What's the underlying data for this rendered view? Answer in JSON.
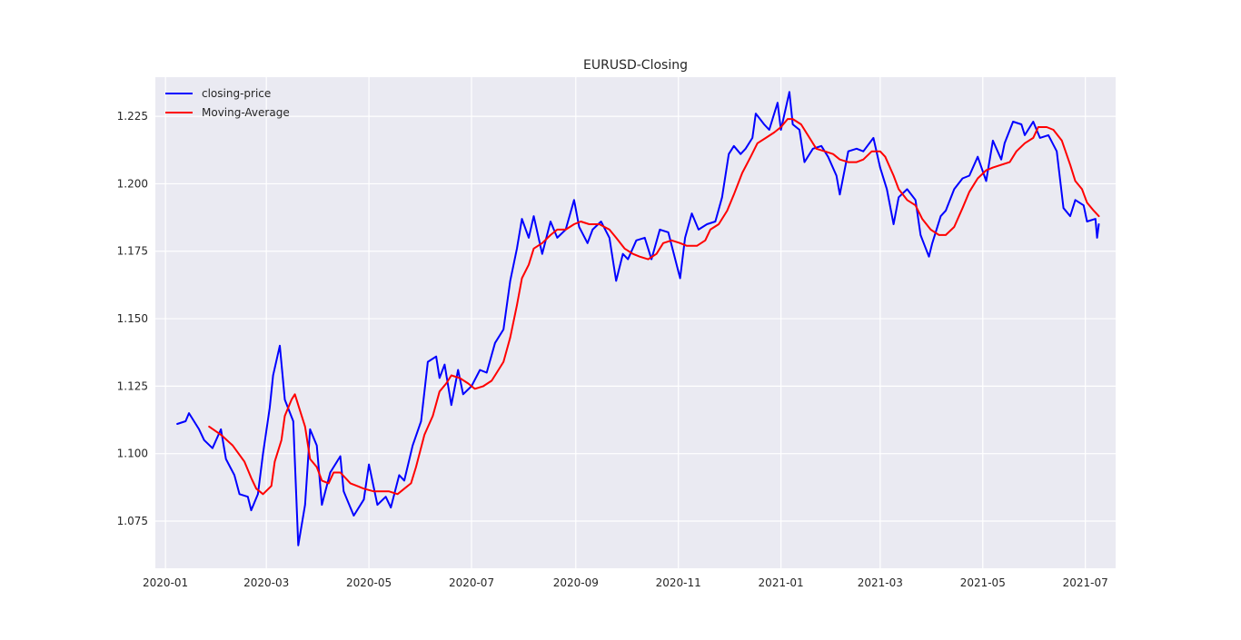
{
  "chart_data": {
    "type": "line",
    "title": "EURUSD-Closing",
    "xlabel": "",
    "ylabel": "",
    "x_axis": "date",
    "xlim": [
      "2019-12-26",
      "2021-07-19"
    ],
    "ylim": [
      1.0575,
      1.2395
    ],
    "x_ticks": [
      "2020-01",
      "2020-03",
      "2020-05",
      "2020-07",
      "2020-09",
      "2020-11",
      "2021-01",
      "2021-03",
      "2021-05",
      "2021-07"
    ],
    "y_ticks": [
      "1.075",
      "1.100",
      "1.125",
      "1.150",
      "1.175",
      "1.200",
      "1.225"
    ],
    "grid": true,
    "legend_position": "top-left",
    "series": [
      {
        "name": "closing-price",
        "color": "#0000ff",
        "points": [
          [
            "2020-01-08",
            1.111
          ],
          [
            "2020-01-13",
            1.112
          ],
          [
            "2020-01-15",
            1.115
          ],
          [
            "2020-01-21",
            1.109
          ],
          [
            "2020-01-24",
            1.105
          ],
          [
            "2020-01-29",
            1.102
          ],
          [
            "2020-02-03",
            1.109
          ],
          [
            "2020-02-06",
            1.098
          ],
          [
            "2020-02-11",
            1.092
          ],
          [
            "2020-02-14",
            1.085
          ],
          [
            "2020-02-19",
            1.084
          ],
          [
            "2020-02-21",
            1.079
          ],
          [
            "2020-02-25",
            1.085
          ],
          [
            "2020-02-28",
            1.1
          ],
          [
            "2020-03-03",
            1.117
          ],
          [
            "2020-03-05",
            1.129
          ],
          [
            "2020-03-09",
            1.14
          ],
          [
            "2020-03-12",
            1.12
          ],
          [
            "2020-03-17",
            1.112
          ],
          [
            "2020-03-20",
            1.066
          ],
          [
            "2020-03-24",
            1.081
          ],
          [
            "2020-03-27",
            1.109
          ],
          [
            "2020-03-31",
            1.103
          ],
          [
            "2020-04-03",
            1.081
          ],
          [
            "2020-04-08",
            1.093
          ],
          [
            "2020-04-14",
            1.099
          ],
          [
            "2020-04-16",
            1.086
          ],
          [
            "2020-04-22",
            1.077
          ],
          [
            "2020-04-28",
            1.083
          ],
          [
            "2020-05-01",
            1.096
          ],
          [
            "2020-05-06",
            1.081
          ],
          [
            "2020-05-11",
            1.084
          ],
          [
            "2020-05-14",
            1.08
          ],
          [
            "2020-05-19",
            1.092
          ],
          [
            "2020-05-22",
            1.09
          ],
          [
            "2020-05-27",
            1.103
          ],
          [
            "2020-06-01",
            1.112
          ],
          [
            "2020-06-05",
            1.134
          ],
          [
            "2020-06-10",
            1.136
          ],
          [
            "2020-06-12",
            1.128
          ],
          [
            "2020-06-15",
            1.133
          ],
          [
            "2020-06-19",
            1.118
          ],
          [
            "2020-06-23",
            1.131
          ],
          [
            "2020-06-26",
            1.122
          ],
          [
            "2020-07-01",
            1.125
          ],
          [
            "2020-07-06",
            1.131
          ],
          [
            "2020-07-10",
            1.13
          ],
          [
            "2020-07-15",
            1.141
          ],
          [
            "2020-07-20",
            1.146
          ],
          [
            "2020-07-24",
            1.164
          ],
          [
            "2020-07-28",
            1.176
          ],
          [
            "2020-07-31",
            1.187
          ],
          [
            "2020-08-04",
            1.18
          ],
          [
            "2020-08-07",
            1.188
          ],
          [
            "2020-08-12",
            1.174
          ],
          [
            "2020-08-17",
            1.186
          ],
          [
            "2020-08-21",
            1.18
          ],
          [
            "2020-08-26",
            1.183
          ],
          [
            "2020-08-31",
            1.194
          ],
          [
            "2020-09-03",
            1.184
          ],
          [
            "2020-09-08",
            1.178
          ],
          [
            "2020-09-11",
            1.183
          ],
          [
            "2020-09-16",
            1.186
          ],
          [
            "2020-09-21",
            1.18
          ],
          [
            "2020-09-25",
            1.164
          ],
          [
            "2020-09-29",
            1.174
          ],
          [
            "2020-10-02",
            1.172
          ],
          [
            "2020-10-07",
            1.179
          ],
          [
            "2020-10-12",
            1.18
          ],
          [
            "2020-10-16",
            1.172
          ],
          [
            "2020-10-21",
            1.183
          ],
          [
            "2020-10-26",
            1.182
          ],
          [
            "2020-11-02",
            1.165
          ],
          [
            "2020-11-05",
            1.18
          ],
          [
            "2020-11-09",
            1.189
          ],
          [
            "2020-11-13",
            1.183
          ],
          [
            "2020-11-18",
            1.185
          ],
          [
            "2020-11-23",
            1.186
          ],
          [
            "2020-11-27",
            1.195
          ],
          [
            "2020-12-01",
            1.211
          ],
          [
            "2020-12-04",
            1.214
          ],
          [
            "2020-12-08",
            1.211
          ],
          [
            "2020-12-11",
            1.213
          ],
          [
            "2020-12-15",
            1.217
          ],
          [
            "2020-12-17",
            1.226
          ],
          [
            "2020-12-22",
            1.222
          ],
          [
            "2020-12-25",
            1.22
          ],
          [
            "2020-12-30",
            1.23
          ],
          [
            "2021-01-01",
            1.22
          ],
          [
            "2021-01-06",
            1.234
          ],
          [
            "2021-01-08",
            1.222
          ],
          [
            "2021-01-12",
            1.22
          ],
          [
            "2021-01-15",
            1.208
          ],
          [
            "2021-01-20",
            1.213
          ],
          [
            "2021-01-25",
            1.214
          ],
          [
            "2021-01-29",
            1.21
          ],
          [
            "2021-02-03",
            1.203
          ],
          [
            "2021-02-05",
            1.196
          ],
          [
            "2021-02-10",
            1.212
          ],
          [
            "2021-02-15",
            1.213
          ],
          [
            "2021-02-19",
            1.212
          ],
          [
            "2021-02-25",
            1.217
          ],
          [
            "2021-03-01",
            1.206
          ],
          [
            "2021-03-05",
            1.198
          ],
          [
            "2021-03-09",
            1.185
          ],
          [
            "2021-03-12",
            1.195
          ],
          [
            "2021-03-17",
            1.198
          ],
          [
            "2021-03-22",
            1.194
          ],
          [
            "2021-03-25",
            1.181
          ],
          [
            "2021-03-30",
            1.173
          ],
          [
            "2021-04-01",
            1.178
          ],
          [
            "2021-04-06",
            1.188
          ],
          [
            "2021-04-09",
            1.19
          ],
          [
            "2021-04-14",
            1.198
          ],
          [
            "2021-04-19",
            1.202
          ],
          [
            "2021-04-23",
            1.203
          ],
          [
            "2021-04-28",
            1.21
          ],
          [
            "2021-05-03",
            1.201
          ],
          [
            "2021-05-07",
            1.216
          ],
          [
            "2021-05-12",
            1.209
          ],
          [
            "2021-05-14",
            1.215
          ],
          [
            "2021-05-19",
            1.223
          ],
          [
            "2021-05-24",
            1.222
          ],
          [
            "2021-05-26",
            1.218
          ],
          [
            "2021-05-31",
            1.223
          ],
          [
            "2021-06-04",
            1.217
          ],
          [
            "2021-06-09",
            1.218
          ],
          [
            "2021-06-14",
            1.212
          ],
          [
            "2021-06-18",
            1.191
          ],
          [
            "2021-06-22",
            1.188
          ],
          [
            "2021-06-25",
            1.194
          ],
          [
            "2021-06-30",
            1.192
          ],
          [
            "2021-07-02",
            1.186
          ],
          [
            "2021-07-07",
            1.187
          ],
          [
            "2021-07-08",
            1.18
          ],
          [
            "2021-07-09",
            1.185
          ]
        ]
      },
      {
        "name": "Moving-Average",
        "color": "#ff0000",
        "points": [
          [
            "2020-01-27",
            1.11
          ],
          [
            "2020-02-03",
            1.107
          ],
          [
            "2020-02-10",
            1.103
          ],
          [
            "2020-02-17",
            1.097
          ],
          [
            "2020-02-21",
            1.091
          ],
          [
            "2020-02-24",
            1.087
          ],
          [
            "2020-02-28",
            1.085
          ],
          [
            "2020-03-04",
            1.088
          ],
          [
            "2020-03-06",
            1.097
          ],
          [
            "2020-03-10",
            1.105
          ],
          [
            "2020-03-12",
            1.114
          ],
          [
            "2020-03-16",
            1.12
          ],
          [
            "2020-03-18",
            1.122
          ],
          [
            "2020-03-20",
            1.118
          ],
          [
            "2020-03-24",
            1.11
          ],
          [
            "2020-03-27",
            1.098
          ],
          [
            "2020-03-31",
            1.095
          ],
          [
            "2020-04-03",
            1.09
          ],
          [
            "2020-04-07",
            1.089
          ],
          [
            "2020-04-10",
            1.093
          ],
          [
            "2020-04-14",
            1.093
          ],
          [
            "2020-04-20",
            1.089
          ],
          [
            "2020-04-24",
            1.088
          ],
          [
            "2020-04-28",
            1.087
          ],
          [
            "2020-05-04",
            1.086
          ],
          [
            "2020-05-08",
            1.086
          ],
          [
            "2020-05-13",
            1.086
          ],
          [
            "2020-05-18",
            1.085
          ],
          [
            "2020-05-22",
            1.087
          ],
          [
            "2020-05-26",
            1.089
          ],
          [
            "2020-05-29",
            1.095
          ],
          [
            "2020-06-03",
            1.107
          ],
          [
            "2020-06-08",
            1.114
          ],
          [
            "2020-06-12",
            1.123
          ],
          [
            "2020-06-16",
            1.126
          ],
          [
            "2020-06-19",
            1.129
          ],
          [
            "2020-06-24",
            1.128
          ],
          [
            "2020-06-29",
            1.126
          ],
          [
            "2020-07-03",
            1.124
          ],
          [
            "2020-07-08",
            1.125
          ],
          [
            "2020-07-13",
            1.127
          ],
          [
            "2020-07-16",
            1.13
          ],
          [
            "2020-07-20",
            1.134
          ],
          [
            "2020-07-24",
            1.143
          ],
          [
            "2020-07-28",
            1.155
          ],
          [
            "2020-07-31",
            1.165
          ],
          [
            "2020-08-04",
            1.17
          ],
          [
            "2020-08-07",
            1.176
          ],
          [
            "2020-08-12",
            1.178
          ],
          [
            "2020-08-17",
            1.181
          ],
          [
            "2020-08-21",
            1.183
          ],
          [
            "2020-08-26",
            1.183
          ],
          [
            "2020-08-31",
            1.185
          ],
          [
            "2020-09-04",
            1.186
          ],
          [
            "2020-09-09",
            1.185
          ],
          [
            "2020-09-15",
            1.185
          ],
          [
            "2020-09-21",
            1.183
          ],
          [
            "2020-09-25",
            1.18
          ],
          [
            "2020-09-30",
            1.176
          ],
          [
            "2020-10-05",
            1.174
          ],
          [
            "2020-10-09",
            1.173
          ],
          [
            "2020-10-14",
            1.172
          ],
          [
            "2020-10-19",
            1.174
          ],
          [
            "2020-10-23",
            1.178
          ],
          [
            "2020-10-28",
            1.179
          ],
          [
            "2020-11-02",
            1.178
          ],
          [
            "2020-11-06",
            1.177
          ],
          [
            "2020-11-12",
            1.177
          ],
          [
            "2020-11-17",
            1.179
          ],
          [
            "2020-11-20",
            1.183
          ],
          [
            "2020-11-25",
            1.185
          ],
          [
            "2020-11-30",
            1.19
          ],
          [
            "2020-12-04",
            1.196
          ],
          [
            "2020-12-09",
            1.204
          ],
          [
            "2020-12-14",
            1.21
          ],
          [
            "2020-12-18",
            1.215
          ],
          [
            "2020-12-23",
            1.217
          ],
          [
            "2020-12-28",
            1.219
          ],
          [
            "2021-01-01",
            1.221
          ],
          [
            "2021-01-05",
            1.224
          ],
          [
            "2021-01-08",
            1.224
          ],
          [
            "2021-01-13",
            1.222
          ],
          [
            "2021-01-18",
            1.217
          ],
          [
            "2021-01-22",
            1.213
          ],
          [
            "2021-01-27",
            1.212
          ],
          [
            "2021-02-01",
            1.211
          ],
          [
            "2021-02-05",
            1.209
          ],
          [
            "2021-02-10",
            1.208
          ],
          [
            "2021-02-15",
            1.208
          ],
          [
            "2021-02-19",
            1.209
          ],
          [
            "2021-02-24",
            1.212
          ],
          [
            "2021-03-01",
            1.212
          ],
          [
            "2021-03-04",
            1.21
          ],
          [
            "2021-03-09",
            1.203
          ],
          [
            "2021-03-12",
            1.198
          ],
          [
            "2021-03-17",
            1.194
          ],
          [
            "2021-03-22",
            1.192
          ],
          [
            "2021-03-26",
            1.187
          ],
          [
            "2021-03-31",
            1.183
          ],
          [
            "2021-04-05",
            1.181
          ],
          [
            "2021-04-09",
            1.181
          ],
          [
            "2021-04-14",
            1.184
          ],
          [
            "2021-04-19",
            1.191
          ],
          [
            "2021-04-23",
            1.197
          ],
          [
            "2021-04-28",
            1.202
          ],
          [
            "2021-05-03",
            1.205
          ],
          [
            "2021-05-07",
            1.206
          ],
          [
            "2021-05-12",
            1.207
          ],
          [
            "2021-05-17",
            1.208
          ],
          [
            "2021-05-21",
            1.212
          ],
          [
            "2021-05-26",
            1.215
          ],
          [
            "2021-05-31",
            1.217
          ],
          [
            "2021-06-03",
            1.221
          ],
          [
            "2021-06-08",
            1.221
          ],
          [
            "2021-06-12",
            1.22
          ],
          [
            "2021-06-17",
            1.216
          ],
          [
            "2021-06-22",
            1.207
          ],
          [
            "2021-06-25",
            1.201
          ],
          [
            "2021-06-29",
            1.198
          ],
          [
            "2021-07-02",
            1.193
          ],
          [
            "2021-07-06",
            1.19
          ],
          [
            "2021-07-09",
            1.188
          ]
        ]
      }
    ]
  }
}
